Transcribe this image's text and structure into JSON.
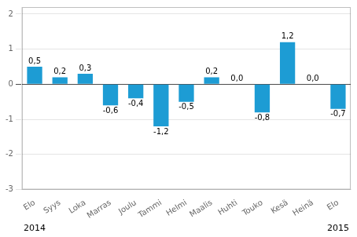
{
  "chart_data": {
    "type": "bar",
    "categories": [
      "Elo",
      "Syys",
      "Loka",
      "Marras",
      "Joulu",
      "Tammi",
      "Helmi",
      "Maalis",
      "Huhti",
      "Touko",
      "Kesä",
      "Heinä",
      "Elo"
    ],
    "values": [
      0.5,
      0.2,
      0.3,
      -0.6,
      -0.4,
      -1.2,
      -0.5,
      0.2,
      0.0,
      -0.8,
      1.2,
      0.0,
      -0.7
    ],
    "value_labels": [
      "0,5",
      "0,2",
      "0,3",
      "-0,6",
      "-0,4",
      "-1,2",
      "-0,5",
      "0,2",
      "0,0",
      "-0,8",
      "1,2",
      "0,0",
      "-0,7"
    ],
    "data_labels": true,
    "color": "#1d9cd4",
    "ylim": [
      -3,
      2.2
    ],
    "yticks": [
      -3,
      -2,
      -1,
      0,
      1,
      2
    ],
    "grid": true,
    "annotations": [
      {
        "text": "2014",
        "x": 0
      },
      {
        "text": "2015",
        "x": 12
      }
    ]
  }
}
